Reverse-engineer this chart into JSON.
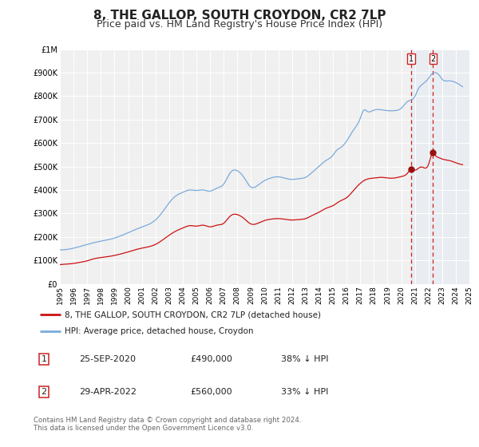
{
  "title": "8, THE GALLOP, SOUTH CROYDON, CR2 7LP",
  "subtitle": "Price paid vs. HM Land Registry's House Price Index (HPI)",
  "title_fontsize": 11,
  "subtitle_fontsize": 9,
  "background_color": "#ffffff",
  "plot_bg_color": "#f0f0f0",
  "grid_color": "#ffffff",
  "hpi_color": "#7aaadd",
  "price_color": "#cc1111",
  "marker_color": "#991111",
  "ylim": [
    0,
    1000000
  ],
  "xlim_start": 1995,
  "xlim_end": 2025,
  "annotation_bg": "#dde8f5",
  "annotation_line_color": "#cc2222",
  "marker1_x": 2020.73,
  "marker1_y": 490000,
  "marker2_x": 2022.33,
  "marker2_y": 560000,
  "label1_date": "25-SEP-2020",
  "label1_price": "£490,000",
  "label1_pct": "38% ↓ HPI",
  "label2_date": "29-APR-2022",
  "label2_price": "£560,000",
  "label2_pct": "33% ↓ HPI",
  "legend_label1": "8, THE GALLOP, SOUTH CROYDON, CR2 7LP (detached house)",
  "legend_label2": "HPI: Average price, detached house, Croydon",
  "footer_text": "Contains HM Land Registry data © Crown copyright and database right 2024.\nThis data is licensed under the Open Government Licence v3.0.",
  "yticks": [
    0,
    100000,
    200000,
    300000,
    400000,
    500000,
    600000,
    700000,
    800000,
    900000,
    1000000
  ],
  "ytick_labels": [
    "£0",
    "£100K",
    "£200K",
    "£300K",
    "£400K",
    "£500K",
    "£600K",
    "£700K",
    "£800K",
    "£900K",
    "£1M"
  ],
  "xticks": [
    1995,
    1996,
    1997,
    1998,
    1999,
    2000,
    2001,
    2002,
    2003,
    2004,
    2005,
    2006,
    2007,
    2008,
    2009,
    2010,
    2011,
    2012,
    2013,
    2014,
    2015,
    2016,
    2017,
    2018,
    2019,
    2020,
    2021,
    2022,
    2023,
    2024,
    2025
  ]
}
